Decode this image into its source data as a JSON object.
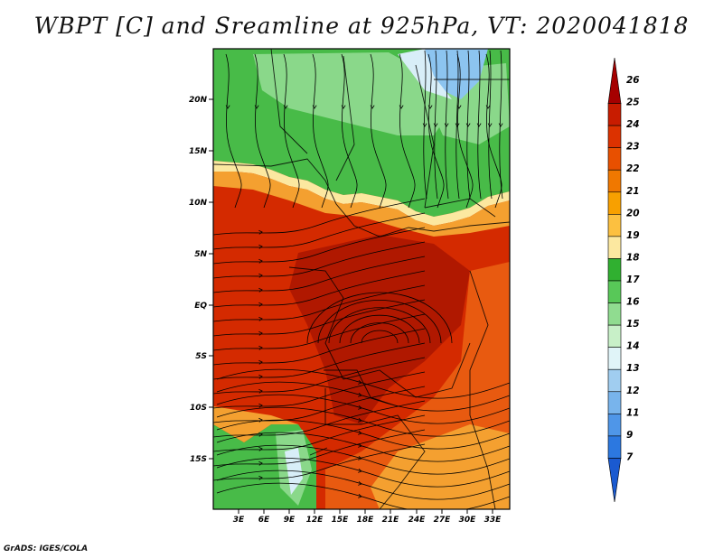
{
  "title": "WBPT [C] and Sreamline at 925hPa, VT: 2020041818",
  "credit": "GrADS: IGES/COLA",
  "lat_ticks": [
    "20N",
    "15N",
    "10N",
    "5N",
    "EQ",
    "5S",
    "10S",
    "15S"
  ],
  "lon_ticks": [
    "3E",
    "6E",
    "9E",
    "12E",
    "15E",
    "18E",
    "21E",
    "24E",
    "27E",
    "30E",
    "33E"
  ],
  "colorbar": {
    "labels": [
      "26",
      "25",
      "24",
      "23",
      "22",
      "21",
      "20",
      "19",
      "18",
      "17",
      "16",
      "15",
      "14",
      "13",
      "12",
      "11",
      "9",
      "7"
    ],
    "colors": [
      "#a50000",
      "#c81c00",
      "#dc3200",
      "#e85000",
      "#f07800",
      "#f8a000",
      "#fcc040",
      "#fce8a0",
      "#30b030",
      "#58c858",
      "#90dc90",
      "#c8f0c8",
      "#e0f4f8",
      "#a0cdf0",
      "#78b4ec",
      "#4f96e8",
      "#2c78e0",
      "#1a5ad0"
    ]
  },
  "map_colors": {
    "hot": "#d42a00",
    "warm": "#e85a10",
    "orange": "#f4a030",
    "yellow": "#fce8a0",
    "green": "#48bb48",
    "lightgreen": "#8ad88a",
    "blue": "#8cc4f0",
    "paleblue": "#d8eef8",
    "deepred": "#b01800"
  }
}
